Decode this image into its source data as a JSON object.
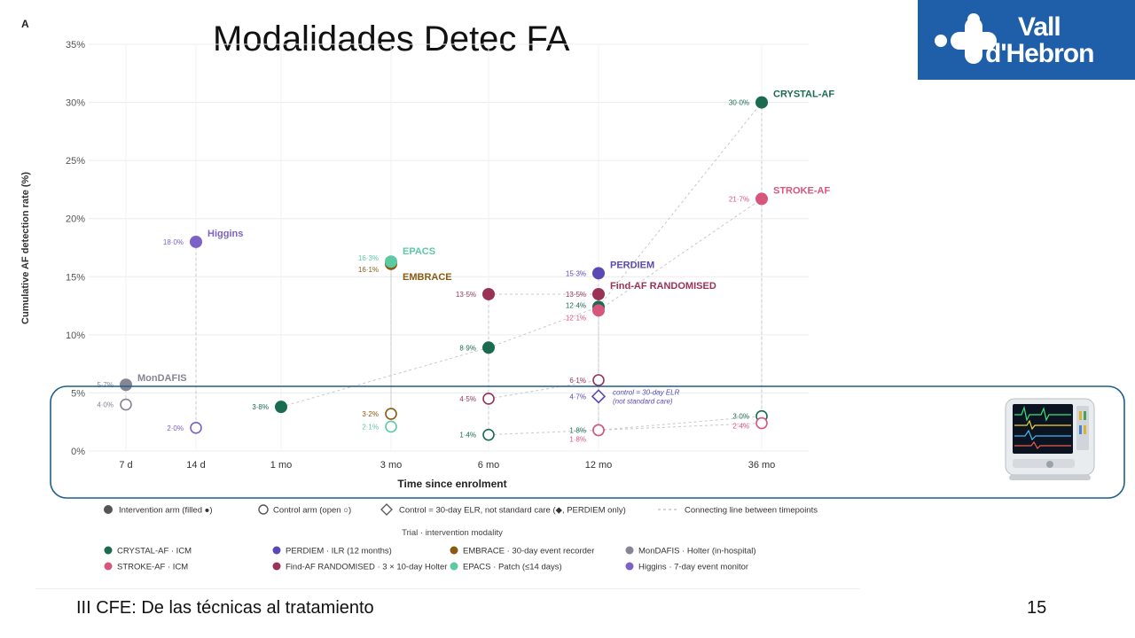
{
  "slide": {
    "title": "Modalidades Detec FA",
    "footer": "III CFE: De las técnicas al tratamiento",
    "page_number": "15",
    "logo": {
      "line1": "Vall",
      "line2": "d'Hebron",
      "color": "#1f5ea8"
    }
  },
  "chart_data": {
    "type": "scatter",
    "panel_label": "A",
    "title": "",
    "xlabel": "Time since enrolment",
    "ylabel": "Cumulative AF detection rate (%)",
    "x_categories": [
      "7 d",
      "14 d",
      "1 mo",
      "3 mo",
      "6 mo",
      "12 mo",
      "36 mo"
    ],
    "y_ticks": [
      "0%",
      "5%",
      "10%",
      "15%",
      "20%",
      "25%",
      "30%",
      "35%"
    ],
    "ylim": [
      0,
      35
    ],
    "grid": true,
    "series": [
      {
        "name": "CRYSTAL-AF",
        "modality": "ICM",
        "color": "#1a6b4f",
        "label_pos": "right",
        "points": [
          {
            "x": "1 mo",
            "y": 3.8,
            "arm": "intervention",
            "label": "3·8%"
          },
          {
            "x": "6 mo",
            "y": 8.9,
            "arm": "intervention",
            "label": "8·9%"
          },
          {
            "x": "12 mo",
            "y": 12.4,
            "arm": "intervention",
            "label": "12·4%"
          },
          {
            "x": "36 mo",
            "y": 30.0,
            "arm": "intervention",
            "label": "30·0%"
          },
          {
            "x": "6 mo",
            "y": 1.4,
            "arm": "control",
            "label": "1·4%"
          },
          {
            "x": "12 mo",
            "y": 1.8,
            "arm": "control",
            "label": "1·8%"
          },
          {
            "x": "36 mo",
            "y": 3.0,
            "arm": "control",
            "label": "3·0%"
          }
        ],
        "trial_label": {
          "text": "CRYSTAL-AF",
          "x": "36 mo",
          "y": 30.0
        }
      },
      {
        "name": "STROKE-AF",
        "modality": "ICM",
        "color": "#d6567c",
        "points": [
          {
            "x": "12 mo",
            "y": 12.1,
            "arm": "intervention",
            "label": "12·1%"
          },
          {
            "x": "36 mo",
            "y": 21.7,
            "arm": "intervention",
            "label": "21·7%"
          },
          {
            "x": "12 mo",
            "y": 1.8,
            "arm": "control",
            "label": "1·8%"
          },
          {
            "x": "36 mo",
            "y": 2.4,
            "arm": "control",
            "label": "2·4%"
          }
        ],
        "trial_label": {
          "text": "STROKE-AF",
          "x": "36 mo",
          "y": 21.7
        }
      },
      {
        "name": "PERDIEM",
        "modality": "ILR (12 months)",
        "color": "#5a48b5",
        "points": [
          {
            "x": "12 mo",
            "y": 15.3,
            "arm": "intervention",
            "label": "15·3%"
          },
          {
            "x": "12 mo",
            "y": 4.7,
            "arm": "elr",
            "label": "4·7%"
          }
        ],
        "trial_label": {
          "text": "PERDIEM",
          "x": "12 mo",
          "y": 15.3
        },
        "note": {
          "line1": "control = 30-day ELR",
          "line2": "(not standard care)"
        }
      },
      {
        "name": "Find-AF RANDOMISED",
        "modality": "3 × 10-day Holter",
        "color": "#993355",
        "points": [
          {
            "x": "6 mo",
            "y": 13.5,
            "arm": "intervention",
            "label": "13·5%"
          },
          {
            "x": "12 mo",
            "y": 13.5,
            "arm": "intervention",
            "label": "13·5%"
          },
          {
            "x": "6 mo",
            "y": 4.5,
            "arm": "control",
            "label": "4·5%"
          },
          {
            "x": "12 mo",
            "y": 6.1,
            "arm": "control",
            "label": "6·1%"
          }
        ],
        "trial_label": {
          "text": "Find-AF RANDOMISED",
          "x": "12 mo",
          "y": 13.5
        }
      },
      {
        "name": "EMBRACE",
        "modality": "30-day event recorder",
        "color": "#8a5a12",
        "points": [
          {
            "x": "3 mo",
            "y": 16.1,
            "arm": "intervention",
            "label": "16·1%"
          },
          {
            "x": "3 mo",
            "y": 3.2,
            "arm": "control",
            "label": "3·2%"
          }
        ],
        "trial_label": {
          "text": "EMBRACE",
          "x": "3 mo",
          "y": 16.1
        }
      },
      {
        "name": "EPACS",
        "modality": "Patch (≤14 days)",
        "color": "#5cc9a3",
        "points": [
          {
            "x": "3 mo",
            "y": 16.3,
            "arm": "intervention",
            "label": "16·3%"
          },
          {
            "x": "3 mo",
            "y": 2.1,
            "arm": "control",
            "label": "2·1%"
          }
        ],
        "trial_label": {
          "text": "EPACS",
          "x": "3 mo",
          "y": 16.3
        }
      },
      {
        "name": "MonDAFIS",
        "modality": "Holter (in-hospital)",
        "color": "#858593",
        "points": [
          {
            "x": "7 d",
            "y": 5.7,
            "arm": "intervention",
            "label": "5·7%"
          },
          {
            "x": "7 d",
            "y": 4.0,
            "arm": "control",
            "label": "4·0%"
          }
        ],
        "trial_label": {
          "text": "MonDAFIS",
          "x": "7 d",
          "y": 5.7
        }
      },
      {
        "name": "Higgins",
        "modality": "7-day event monitor",
        "color": "#7c62c4",
        "points": [
          {
            "x": "14 d",
            "y": 18.0,
            "arm": "intervention",
            "label": "18·0%"
          },
          {
            "x": "14 d",
            "y": 2.0,
            "arm": "control",
            "label": "2·0%"
          }
        ],
        "trial_label": {
          "text": "Higgins",
          "x": "14 d",
          "y": 18.0
        }
      }
    ],
    "legend_top": [
      {
        "marker": "filled",
        "text": "Intervention arm (filled ●)"
      },
      {
        "marker": "open",
        "text": "Control arm (open ○)"
      },
      {
        "marker": "diamond",
        "text": "Control = 30-day ELR, not standard care (◆, PERDIEM only)"
      },
      {
        "marker": "dashed",
        "text": "Connecting line between timepoints"
      }
    ],
    "legend_title": "Trial · intervention modality",
    "legend_trials": [
      {
        "text": "CRYSTAL-AF · ICM",
        "color": "#1a6b4f"
      },
      {
        "text": "PERDIEM · ILR (12 months)",
        "color": "#5a48b5"
      },
      {
        "text": "EMBRACE · 30-day event recorder",
        "color": "#8a5a12"
      },
      {
        "text": "MonDAFIS · Holter (in-hospital)",
        "color": "#858593"
      },
      {
        "text": "STROKE-AF · ICM",
        "color": "#d6567c"
      },
      {
        "text": "Find-AF RANDOMISED · 3 × 10-day Holter",
        "color": "#993355"
      },
      {
        "text": "EPACS · Patch (≤14 days)",
        "color": "#5cc9a3"
      },
      {
        "text": "Higgins · 7-day event monitor",
        "color": "#7c62c4"
      }
    ],
    "highlight_color": "#1f5e8a"
  }
}
